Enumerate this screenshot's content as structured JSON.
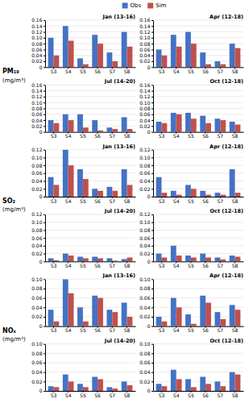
{
  "chart_data": [
    {
      "type": "bar",
      "title": "Jan (13-16)",
      "ylabel": [
        "PM₁₀",
        "(mg/m³)"
      ],
      "legend": "top",
      "categories": [
        "S3",
        "S4",
        "S5",
        "S6",
        "S7",
        "S8"
      ],
      "series": [
        {
          "name": "Obs",
          "color": "#4472C4",
          "values": [
            0.1,
            0.14,
            0.03,
            0.11,
            0.05,
            0.12
          ]
        },
        {
          "name": "Sim",
          "color": "#C0504D",
          "values": [
            0.04,
            0.09,
            0.01,
            0.08,
            0.02,
            0.07
          ]
        }
      ],
      "ylim": [
        0,
        0.16
      ],
      "yticks": [
        0,
        0.02,
        0.04,
        0.06,
        0.08,
        {
          "value": 0.1,
          "label": "0.10"
        },
        0.12,
        0.14,
        0.16
      ],
      "grid": true
    },
    {
      "type": "bar",
      "title": "Apr (12-18)",
      "categories": [
        "S3",
        "S4",
        "S5",
        "S6",
        "S7",
        "S8"
      ],
      "series": [
        {
          "color": "#4472C4",
          "values": [
            0.06,
            0.11,
            0.12,
            0.05,
            0.02,
            0.08
          ]
        },
        {
          "color": "#C0504D",
          "values": [
            0.04,
            0.07,
            0.08,
            0.01,
            0.01,
            0.065
          ]
        }
      ],
      "ylim": [
        0,
        0.16
      ],
      "yticks": [
        0,
        0.02,
        0.04,
        0.06,
        0.08,
        {
          "value": 0.1,
          "label": "0.10"
        },
        0.12,
        0.14,
        0.16
      ],
      "grid": true
    },
    {
      "type": "bar",
      "title": "Jul (14-20)",
      "categories": [
        "S3",
        "S4",
        "S5",
        "S6",
        "S7",
        "S8"
      ],
      "series": [
        {
          "color": "#4472C4",
          "values": [
            0.04,
            0.06,
            0.06,
            0.04,
            0.015,
            0.05
          ]
        },
        {
          "color": "#C0504D",
          "values": [
            0.03,
            0.04,
            0.015,
            0.005,
            0.01,
            0.01
          ]
        }
      ],
      "ylim": [
        0,
        0.16
      ],
      "yticks": [
        0,
        0.02,
        0.04,
        0.06,
        0.08,
        {
          "value": 0.1,
          "label": "0.10"
        },
        0.12,
        0.14,
        0.16
      ],
      "grid": true
    },
    {
      "type": "bar",
      "title": "Oct (12-18)",
      "categories": [
        "S3",
        "S4",
        "S5",
        "S6",
        "S7",
        "S8"
      ],
      "series": [
        {
          "color": "#4472C4",
          "values": [
            0.035,
            0.065,
            0.065,
            0.055,
            0.045,
            0.035
          ]
        },
        {
          "color": "#C0504D",
          "values": [
            0.03,
            0.06,
            0.045,
            0.03,
            0.04,
            0.025
          ]
        }
      ],
      "ylim": [
        0,
        0.16
      ],
      "yticks": [
        0,
        0.02,
        0.04,
        0.06,
        0.08,
        {
          "value": 0.1,
          "label": "0.10"
        },
        0.12,
        0.14,
        0.16
      ],
      "grid": true
    },
    {
      "type": "bar",
      "title": "Jan (13-16)",
      "ylabel": [
        "SO₂",
        "(mg/m³)"
      ],
      "categories": [
        "S3",
        "S4",
        "S5",
        "S6",
        "S7",
        "S8"
      ],
      "series": [
        {
          "color": "#4472C4",
          "values": [
            0.05,
            0.12,
            0.07,
            0.02,
            0.025,
            0.07
          ]
        },
        {
          "color": "#C0504D",
          "values": [
            0.03,
            0.08,
            0.045,
            0.015,
            0.015,
            0.03
          ]
        }
      ],
      "ylim": [
        0,
        0.12
      ],
      "yticks": [
        0,
        0.02,
        0.04,
        0.06,
        0.08,
        {
          "value": 0.1,
          "label": "0.10"
        },
        0.12
      ],
      "grid": true
    },
    {
      "type": "bar",
      "title": "Apr (12-18)",
      "categories": [
        "S3",
        "S4",
        "S5",
        "S6",
        "S7",
        "S8"
      ],
      "series": [
        {
          "color": "#4472C4",
          "values": [
            0.05,
            0.015,
            0.03,
            0.015,
            0.01,
            0.07
          ]
        },
        {
          "color": "#C0504D",
          "values": [
            0.01,
            0.005,
            0.02,
            0.005,
            0.005,
            0.01
          ]
        }
      ],
      "ylim": [
        0,
        0.12
      ],
      "yticks": [
        0,
        0.02,
        0.04,
        0.06,
        0.08,
        {
          "value": 0.1,
          "label": "0.10"
        },
        0.12
      ],
      "grid": true
    },
    {
      "type": "bar",
      "title": "Jul (14-20)",
      "categories": [
        "S3",
        "S4",
        "S5",
        "S6",
        "S7",
        "S8"
      ],
      "series": [
        {
          "color": "#4472C4",
          "values": [
            0.008,
            0.02,
            0.012,
            0.012,
            0.008,
            0.006
          ]
        },
        {
          "color": "#C0504D",
          "values": [
            0.003,
            0.015,
            0.008,
            0.008,
            0.002,
            0.01
          ]
        }
      ],
      "ylim": [
        0,
        0.12
      ],
      "yticks": [
        0,
        0.02,
        0.04,
        0.06,
        0.08,
        {
          "value": 0.1,
          "label": "0.10"
        },
        0.12
      ],
      "grid": true
    },
    {
      "type": "bar",
      "title": "Oct (12-18)",
      "categories": [
        "S3",
        "S4",
        "S5",
        "S6",
        "S7",
        "S8"
      ],
      "series": [
        {
          "color": "#4472C4",
          "values": [
            0.02,
            0.04,
            0.015,
            0.02,
            0.01,
            0.015
          ]
        },
        {
          "color": "#C0504D",
          "values": [
            0.01,
            0.015,
            0.01,
            0.01,
            0.005,
            0.012
          ]
        }
      ],
      "ylim": [
        0,
        0.12
      ],
      "yticks": [
        0,
        0.02,
        0.04,
        0.06,
        0.08,
        {
          "value": 0.1,
          "label": "0.10"
        },
        0.12
      ],
      "grid": true
    },
    {
      "type": "bar",
      "title": "Jan (13-16)",
      "ylabel": [
        "NOₓ",
        "(mg/m³)"
      ],
      "categories": [
        "S3",
        "S4",
        "S5",
        "S6",
        "S7",
        "S8"
      ],
      "series": [
        {
          "color": "#4472C4",
          "values": [
            0.035,
            0.1,
            0.04,
            0.065,
            0.035,
            0.05
          ]
        },
        {
          "color": "#C0504D",
          "values": [
            0.01,
            0.07,
            0.01,
            0.06,
            0.03,
            0.02
          ]
        }
      ],
      "ylim": [
        0,
        0.1
      ],
      "yticks": [
        0,
        0.02,
        0.04,
        0.06,
        0.08,
        {
          "value": 0.1,
          "label": "0.10"
        }
      ],
      "grid": true
    },
    {
      "type": "bar",
      "title": "Apr (12-18)",
      "categories": [
        "S3",
        "S4",
        "S5",
        "S6",
        "S7",
        "S8"
      ],
      "series": [
        {
          "color": "#4472C4",
          "values": [
            0.02,
            0.06,
            0.025,
            0.065,
            0.03,
            0.045
          ]
        },
        {
          "color": "#C0504D",
          "values": [
            0.01,
            0.04,
            0.005,
            0.05,
            0.015,
            0.035
          ]
        }
      ],
      "ylim": [
        0,
        0.1
      ],
      "yticks": [
        0,
        0.02,
        0.04,
        0.06,
        0.08,
        {
          "value": 0.1,
          "label": "0.10"
        }
      ],
      "grid": true
    },
    {
      "type": "bar",
      "title": "Jul (14-20)",
      "categories": [
        "S3",
        "S4",
        "S5",
        "S6",
        "S7",
        "S8"
      ],
      "series": [
        {
          "color": "#4472C4",
          "values": [
            0.01,
            0.035,
            0.015,
            0.03,
            0.008,
            0.02
          ]
        },
        {
          "color": "#C0504D",
          "values": [
            0.008,
            0.02,
            0.008,
            0.025,
            0.005,
            0.012
          ]
        }
      ],
      "ylim": [
        0,
        0.1
      ],
      "yticks": [
        0,
        0.02,
        0.04,
        0.06,
        0.08,
        {
          "value": 0.1,
          "label": "0.10"
        }
      ],
      "grid": true
    },
    {
      "type": "bar",
      "title": "Oct (12-18)",
      "categories": [
        "S3",
        "S4",
        "S5",
        "S6",
        "S7",
        "S8"
      ],
      "series": [
        {
          "color": "#4472C4",
          "values": [
            0.015,
            0.045,
            0.025,
            0.03,
            0.02,
            0.04
          ]
        },
        {
          "color": "#C0504D",
          "values": [
            0.01,
            0.025,
            0.008,
            0.015,
            0.01,
            0.035
          ]
        }
      ],
      "ylim": [
        0,
        0.1
      ],
      "yticks": [
        0,
        0.02,
        0.04,
        0.06,
        0.08,
        {
          "value": 0.1,
          "label": "0.10"
        }
      ],
      "grid": true
    }
  ]
}
